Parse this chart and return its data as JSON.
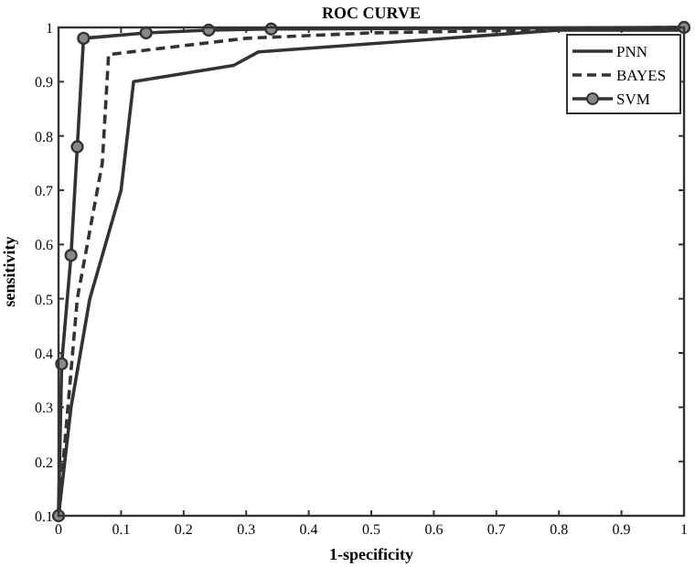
{
  "chart_data": {
    "type": "line",
    "title": "ROC CURVE",
    "xlabel": "1-specificity",
    "ylabel": "sensitivity",
    "xlim": [
      0,
      1
    ],
    "xticks": [
      0,
      0.1,
      0.2,
      0.3,
      0.4,
      0.5,
      0.6,
      0.7,
      0.8,
      0.9,
      1
    ],
    "ylim": [
      0.1,
      1
    ],
    "yticks": [
      0.1,
      0.2,
      0.3,
      0.4,
      0.5,
      0.6,
      0.7,
      0.8,
      0.9,
      1
    ],
    "legend": "top right",
    "grid": false,
    "series": [
      {
        "name": "PNN",
        "color": "#333333",
        "line_style": "solid",
        "marker": "none",
        "x": [
          0,
          0.02,
          0.05,
          0.1,
          0.12,
          0.28,
          0.32,
          0.8,
          1
        ],
        "values": [
          0.1,
          0.3,
          0.5,
          0.7,
          0.9,
          0.93,
          0.955,
          0.995,
          0.995
        ]
      },
      {
        "name": "BAYES",
        "color": "#333333",
        "line_style": "dashed",
        "marker": "none",
        "x": [
          0,
          0.03,
          0.07,
          0.08,
          0.3,
          0.5,
          1
        ],
        "values": [
          0.1,
          0.5,
          0.75,
          0.95,
          0.98,
          0.99,
          1
        ]
      },
      {
        "name": "SVM",
        "color": "#333333",
        "line_style": "solid",
        "marker": "circle",
        "x": [
          0,
          0.005,
          0.02,
          0.03,
          0.04,
          0.14,
          0.24,
          0.34,
          1
        ],
        "values": [
          0.1,
          0.38,
          0.58,
          0.78,
          0.98,
          0.99,
          0.995,
          0.997,
          1
        ]
      }
    ]
  }
}
